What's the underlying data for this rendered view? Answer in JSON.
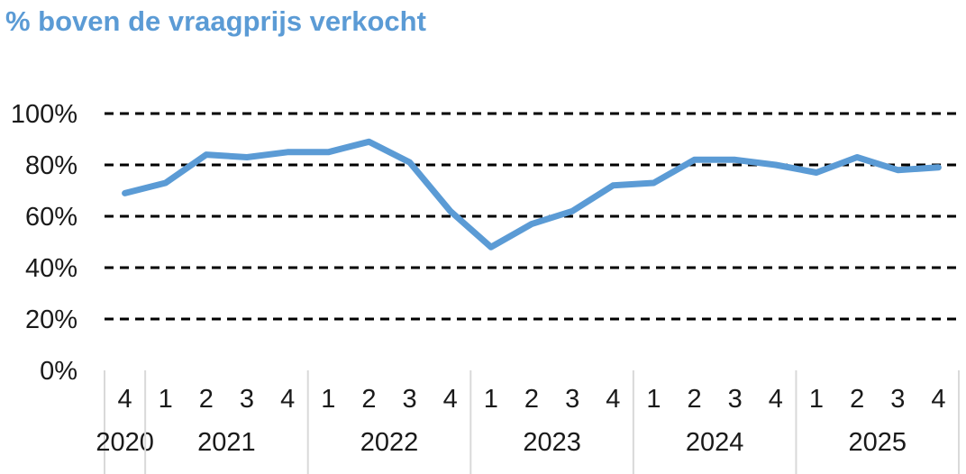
{
  "chart_data": {
    "type": "line",
    "title": "% boven de vraagprijs verkocht",
    "xlabel": "",
    "ylabel": "",
    "ylim": [
      0,
      100
    ],
    "y_ticks": [
      "0%",
      "20%",
      "40%",
      "60%",
      "80%",
      "100%"
    ],
    "grid": "horizontal dashed",
    "colors": {
      "line": "#5b9bd5",
      "grid": "#000000"
    },
    "x": [
      "4",
      "1",
      "2",
      "3",
      "4",
      "1",
      "2",
      "3",
      "4",
      "1",
      "2",
      "3",
      "4",
      "1",
      "2",
      "3",
      "4",
      "1",
      "2",
      "3",
      "4"
    ],
    "years": [
      {
        "label": "2020",
        "quarters": 1
      },
      {
        "label": "2021",
        "quarters": 4
      },
      {
        "label": "2022",
        "quarters": 4
      },
      {
        "label": "2023",
        "quarters": 4
      },
      {
        "label": "2024",
        "quarters": 4
      },
      {
        "label": "2025",
        "quarters": 4
      }
    ],
    "series": [
      {
        "values": [
          69,
          73,
          84,
          83,
          85,
          85,
          89,
          81,
          62,
          48,
          57,
          62,
          72,
          73,
          82,
          82,
          80,
          77,
          83,
          78,
          79
        ]
      }
    ]
  }
}
